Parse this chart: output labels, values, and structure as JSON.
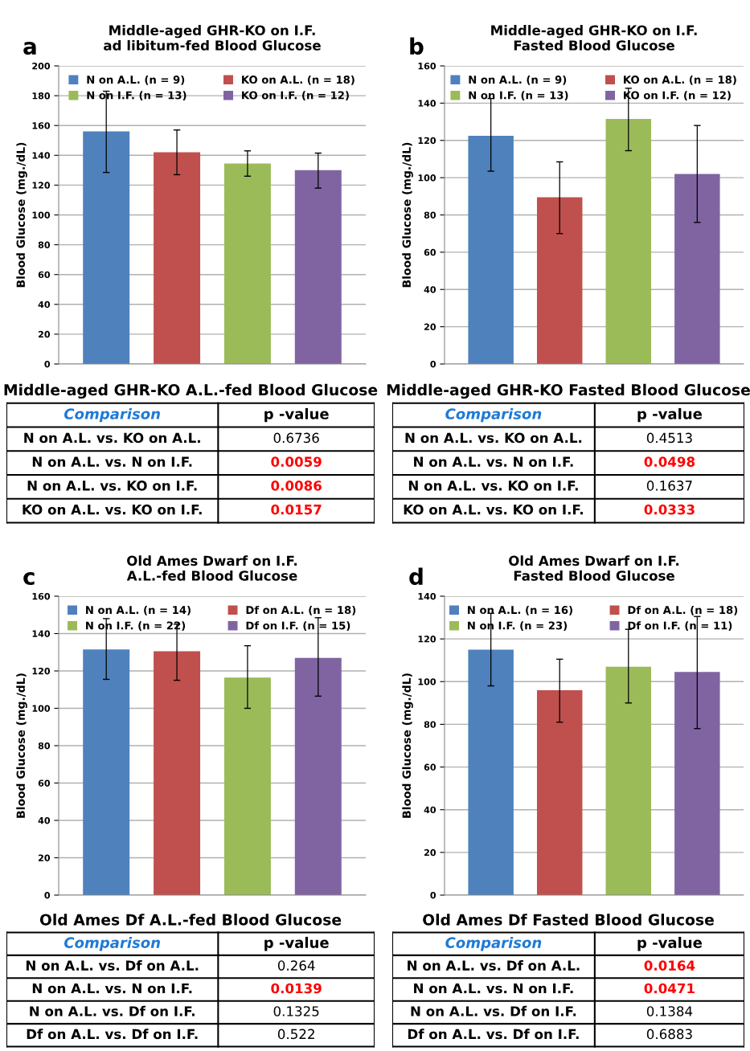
{
  "chart_data": [
    {
      "type": "bar",
      "title": "Middle-aged GHR-KO on I.F.\nad libitum-fed Blood Glucose",
      "ylabel": "Blood Glucose (mg./dL)",
      "categories": [
        null
      ],
      "series": [
        {
          "name": "N on A.L. (n = 9)",
          "color": "#4f81bd",
          "values": [
            156
          ],
          "errors": [
            [
              128.5,
              183
            ]
          ]
        },
        {
          "name": "KO on A.L. (n = 18)",
          "color": "#c0504d",
          "values": [
            142
          ],
          "errors": [
            [
              127,
              157
            ]
          ]
        },
        {
          "name": "N on I.F. (n = 13)",
          "color": "#9bbb59",
          "values": [
            134.5
          ],
          "errors": [
            [
              126,
              143
            ]
          ]
        },
        {
          "name": "KO on I.F. (n = 12)",
          "color": "#8064a2",
          "values": [
            130
          ],
          "errors": [
            [
              118,
              141.5
            ]
          ]
        }
      ],
      "ylim": [
        0,
        200
      ],
      "yticks": [
        0,
        20,
        40,
        60,
        80,
        100,
        120,
        140,
        160,
        180,
        200
      ],
      "grid": "y",
      "legend": "top",
      "annotations": [
        "a",
        "Middle-aged GHR-KO A.L.-fed Blood Glucose",
        "Comparison",
        "p -value",
        "N on A.L. vs. KO on A.L.",
        "0.6736",
        "N on A.L. vs. N on I.F.",
        "0.0059",
        "N on A.L. vs. KO on I.F.",
        "0.0086",
        "KO on A.L. vs. KO on I.F.",
        "0.0157"
      ]
    },
    {
      "type": "bar",
      "title": "Middle-aged GHR-KO on I.F.\nFasted Blood Glucose",
      "ylabel": "Blood Glucose (mg./dL)",
      "categories": [
        null
      ],
      "series": [
        {
          "name": "N on A.L. (n = 9)",
          "color": "#4f81bd",
          "values": [
            122.5
          ],
          "errors": [
            [
              103.5,
              142.5
            ]
          ]
        },
        {
          "name": "KO on A.L. (n = 18)",
          "color": "#c0504d",
          "values": [
            89.5
          ],
          "errors": [
            [
              70,
              108.5
            ]
          ]
        },
        {
          "name": "N on I.F. (n = 13)",
          "color": "#9bbb59",
          "values": [
            131.5
          ],
          "errors": [
            [
              114.5,
              148
            ]
          ]
        },
        {
          "name": "KO on I.F. (n = 12)",
          "color": "#8064a2",
          "values": [
            102
          ],
          "errors": [
            [
              76,
              128
            ]
          ]
        }
      ],
      "ylim": [
        0,
        160
      ],
      "yticks": [
        0,
        20,
        40,
        60,
        80,
        100,
        120,
        140,
        160
      ],
      "grid": "y",
      "legend": "top",
      "annotations": [
        "b",
        "Middle-aged GHR-KO Fasted Blood Glucose",
        "Comparison",
        "p -value",
        "N on A.L. vs. KO on A.L.",
        "0.4513",
        "N on A.L. vs. N on I.F.",
        "0.0498",
        "N on A.L. vs. KO on I.F.",
        "0.1637",
        "KO on A.L. vs. KO on I.F.",
        "0.0333"
      ]
    },
    {
      "type": "bar",
      "title": "Old Ames Dwarf on I.F.\nA.L.-fed Blood Glucose",
      "ylabel": "Blood Glucose (mg./dL)",
      "categories": [
        null
      ],
      "series": [
        {
          "name": "N on A.L. (n = 14)",
          "color": "#4f81bd",
          "values": [
            131.5
          ],
          "errors": [
            [
              115.5,
              148
            ]
          ]
        },
        {
          "name": "Df on A.L. (n = 18)",
          "color": "#c0504d",
          "values": [
            130.5
          ],
          "errors": [
            [
              115,
              145
            ]
          ]
        },
        {
          "name": "N on I.F. (n = 22)",
          "color": "#9bbb59",
          "values": [
            116.5
          ],
          "errors": [
            [
              100,
              133.5
            ]
          ]
        },
        {
          "name": "Df on I.F. (n = 15)",
          "color": "#8064a2",
          "values": [
            127
          ],
          "errors": [
            [
              106.5,
              148.5
            ]
          ]
        }
      ],
      "ylim": [
        0,
        160
      ],
      "yticks": [
        0,
        20,
        40,
        60,
        80,
        100,
        120,
        140,
        160
      ],
      "grid": "y",
      "legend": "top",
      "annotations": [
        "c",
        "Old Ames Df A.L.-fed Blood Glucose",
        "Comparison",
        "p -value",
        "N on A.L. vs. Df on A.L.",
        "0.264",
        "N on A.L. vs. N on I.F.",
        "0.0139",
        "N on A.L. vs. Df on I.F.",
        "0.1325",
        "Df on A.L. vs. Df on I.F.",
        "0.522"
      ]
    },
    {
      "type": "bar",
      "title": "Old Ames Dwarf on I.F.\nFasted Blood Glucose",
      "ylabel": "Blood Glucose (mg./dL)",
      "categories": [
        null
      ],
      "series": [
        {
          "name": "N on A.L. (n = 16)",
          "color": "#4f81bd",
          "values": [
            115
          ],
          "errors": [
            [
              98,
              132
            ]
          ]
        },
        {
          "name": "Df on A.L. (n = 18)",
          "color": "#c0504d",
          "values": [
            96
          ],
          "errors": [
            [
              81,
              110.5
            ]
          ]
        },
        {
          "name": "N on I.F. (n = 23)",
          "color": "#9bbb59",
          "values": [
            107
          ],
          "errors": [
            [
              90,
              124.5
            ]
          ]
        },
        {
          "name": "Df on I.F. (n = 11)",
          "color": "#8064a2",
          "values": [
            104.5
          ],
          "errors": [
            [
              78,
              130.5
            ]
          ]
        }
      ],
      "ylim": [
        0,
        140
      ],
      "yticks": [
        0,
        20,
        40,
        60,
        80,
        100,
        120,
        140
      ],
      "grid": "y",
      "legend": "top",
      "annotations": [
        "d",
        "Old Ames Df Fasted Blood Glucose",
        "Comparison",
        "p -value",
        "N on A.L. vs. Df on A.L.",
        "0.0164",
        "N on A.L. vs. N on I.F.",
        "0.0471",
        "N on A.L. vs. Df on I.F.",
        "0.1384",
        "Df on A.L. vs. Df on I.F.",
        "0.6883"
      ]
    }
  ]
}
